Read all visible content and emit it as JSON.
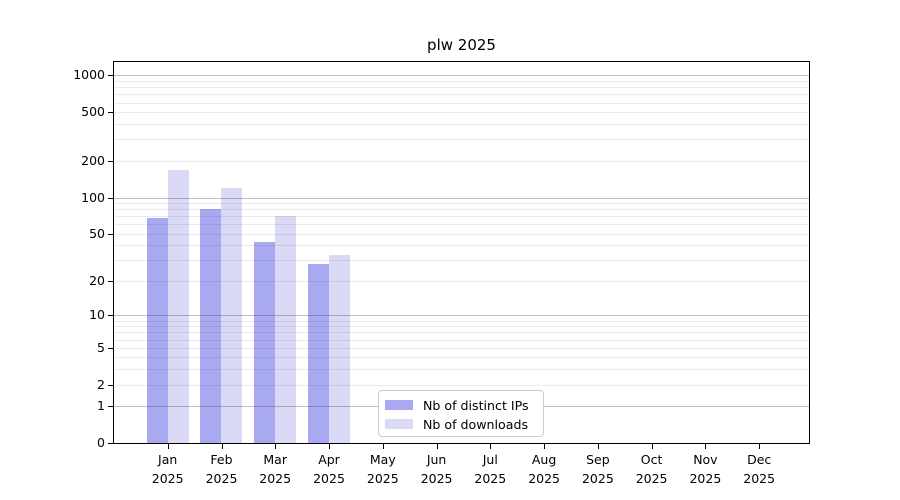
{
  "title": "plw 2025",
  "chart_data": {
    "type": "bar",
    "title": "plw 2025",
    "categories": [
      "Jan",
      "Feb",
      "Mar",
      "Apr",
      "May",
      "Jun",
      "Jul",
      "Aug",
      "Sep",
      "Oct",
      "Nov",
      "Dec"
    ],
    "x_year_label": "2025",
    "series": [
      {
        "name": "Nb of distinct IPs",
        "color": "#a9a9f1",
        "values": [
          68,
          81,
          43,
          28,
          0,
          0,
          0,
          0,
          0,
          0,
          0,
          0
        ]
      },
      {
        "name": "Nb of downloads",
        "color": "#dadaf7",
        "values": [
          168,
          120,
          70,
          33,
          0,
          0,
          0,
          0,
          0,
          0,
          0,
          0
        ]
      }
    ],
    "yticks": [
      1000,
      500,
      200,
      100,
      50,
      20,
      10,
      5,
      2,
      1,
      0
    ],
    "yscale": "log1p",
    "ylim": [
      0,
      1275
    ],
    "xlabel": "",
    "ylabel": "",
    "grid": "on",
    "legend_position": "lower center"
  }
}
